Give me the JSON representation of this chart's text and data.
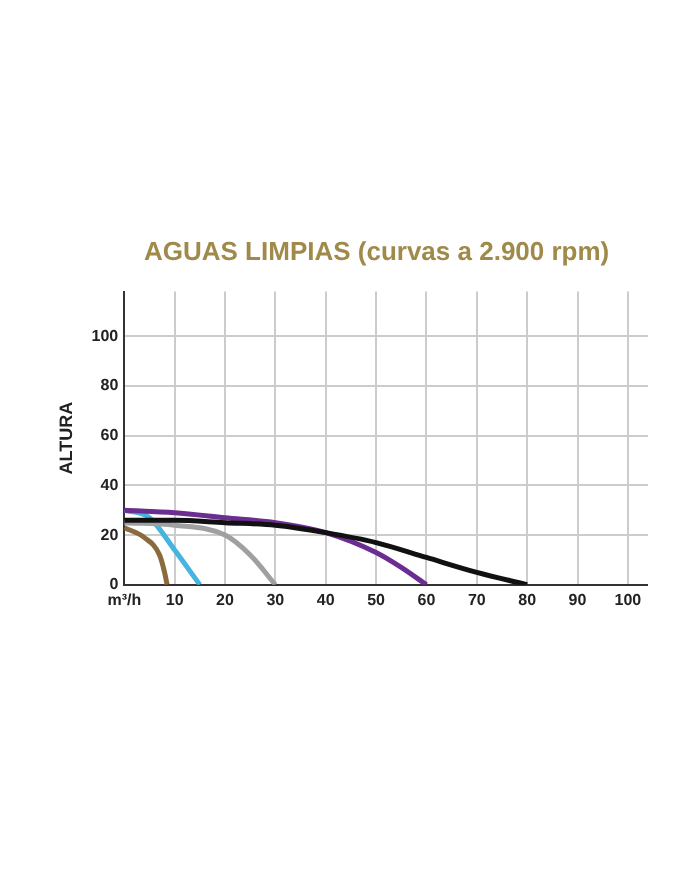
{
  "chart_data": {
    "type": "line",
    "title": "AGUAS LIMPIAS (curvas a 2.900 rpm)",
    "ylabel": "ALTURA",
    "xlim": [
      0,
      104
    ],
    "ylim": [
      0,
      118
    ],
    "xticks": [
      {
        "value": 0,
        "label": "m³/h"
      },
      10,
      20,
      30,
      40,
      50,
      60,
      70,
      80,
      90,
      100
    ],
    "yticks": [
      0,
      20,
      40,
      60,
      80,
      100
    ],
    "grid": true,
    "marker": "none",
    "line_style": "solid",
    "series": [
      {
        "color": "#111111",
        "x": [
          0,
          10,
          20,
          30,
          40,
          50,
          60,
          70,
          80
        ],
        "values": [
          26,
          26,
          25,
          24,
          21,
          17,
          11,
          5,
          0
        ]
      },
      {
        "color": "#6b2d8f",
        "x": [
          0,
          10,
          20,
          30,
          40,
          50,
          55,
          60
        ],
        "values": [
          30,
          29,
          27,
          25,
          21,
          13,
          7,
          0
        ]
      },
      {
        "color": "#a0a0a0",
        "x": [
          0,
          10,
          20,
          25,
          30
        ],
        "values": [
          25,
          24,
          20,
          12,
          0
        ]
      },
      {
        "color": "#8b6a3e",
        "x": [
          0,
          4,
          7,
          8,
          8.5
        ],
        "values": [
          23,
          19,
          12,
          5,
          0
        ]
      },
      {
        "color": "#45b4e0",
        "x": [
          0,
          5,
          10,
          15
        ],
        "values": [
          30,
          27,
          14,
          0
        ]
      }
    ]
  }
}
